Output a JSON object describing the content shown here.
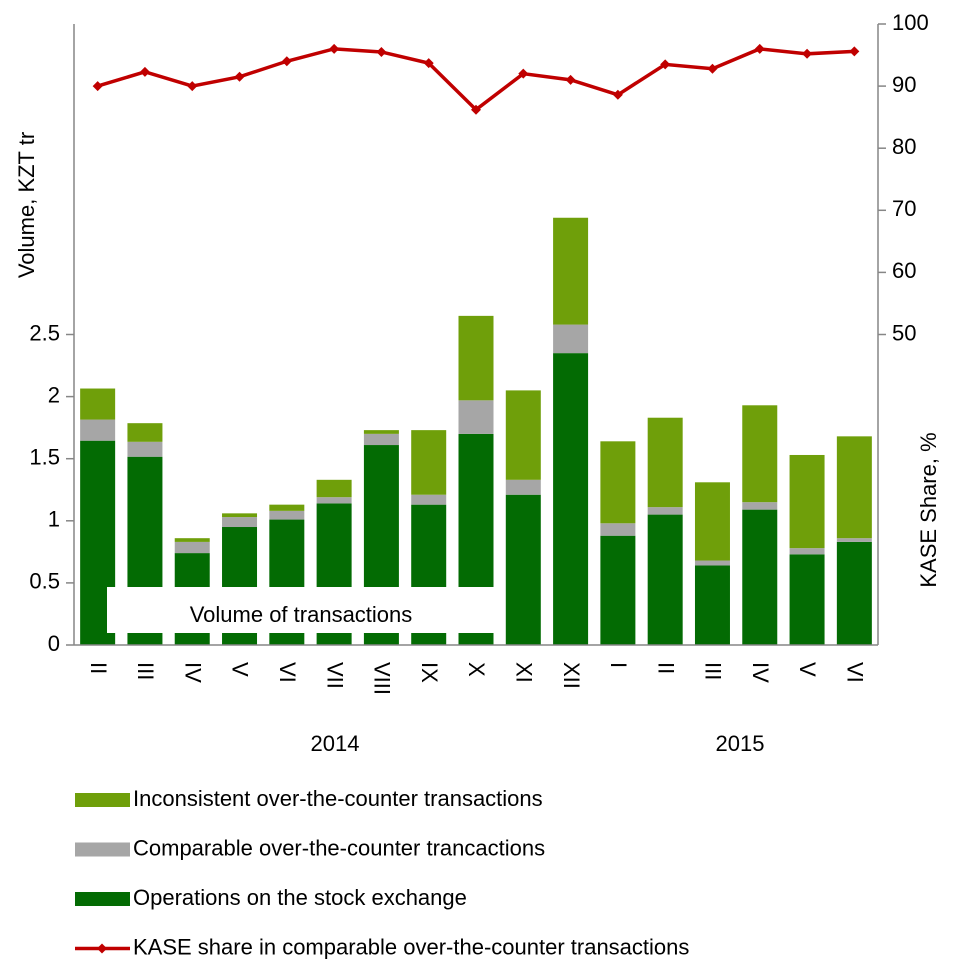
{
  "chart_data": {
    "type": "stacked_bar_line",
    "categories": [
      "II",
      "III",
      "IV",
      "V",
      "VI",
      "VII",
      "VIII",
      "IX",
      "X",
      "XI",
      "XII",
      "I",
      "II",
      "III",
      "IV",
      "V",
      "VI"
    ],
    "x_groups": [
      "2014",
      "2015"
    ],
    "series": [
      {
        "name": "Operations on the stock exchange",
        "color": "#036b03",
        "type": "bar",
        "values": [
          1.645,
          1.516,
          0.74,
          0.95,
          1.01,
          1.14,
          1.61,
          1.13,
          1.7,
          1.21,
          2.35,
          0.88,
          1.05,
          0.64,
          1.09,
          0.73,
          0.83
        ]
      },
      {
        "name": "Comparable over-the-counter trancactions",
        "color": "#a6a6a6",
        "type": "bar",
        "values": [
          0.17,
          0.12,
          0.09,
          0.08,
          0.07,
          0.05,
          0.09,
          0.08,
          0.27,
          0.12,
          0.23,
          0.1,
          0.06,
          0.04,
          0.06,
          0.05,
          0.03
        ]
      },
      {
        "name": "Inconsistent over-the-counter transactions",
        "color": "#6f9f0a",
        "type": "bar",
        "values": [
          0.25,
          0.15,
          0.03,
          0.03,
          0.05,
          0.14,
          0.03,
          0.52,
          0.68,
          0.72,
          0.86,
          0.66,
          0.72,
          0.63,
          0.78,
          0.75,
          0.82
        ]
      },
      {
        "name": "KASE share in comparable over-the-counter transactions",
        "color": "#c00000",
        "type": "line",
        "axis": "y2",
        "values": [
          90,
          92.3,
          90,
          91.5,
          94,
          96,
          95.5,
          93.7,
          86.2,
          92,
          91,
          88.6,
          93.5,
          92.8,
          96,
          95.2,
          95.6
        ]
      }
    ],
    "ylabel": "Volume, KZT tr",
    "y2label": "KASE  Share, %",
    "annotation": "Volume of transactions",
    "ylim": [
      0,
      5
    ],
    "yticks": [
      0,
      0.5,
      1,
      1.5,
      2,
      2.5
    ],
    "y2lim": [
      0,
      100
    ],
    "y2ticks": [
      50,
      60,
      70,
      80,
      90,
      100
    ]
  }
}
